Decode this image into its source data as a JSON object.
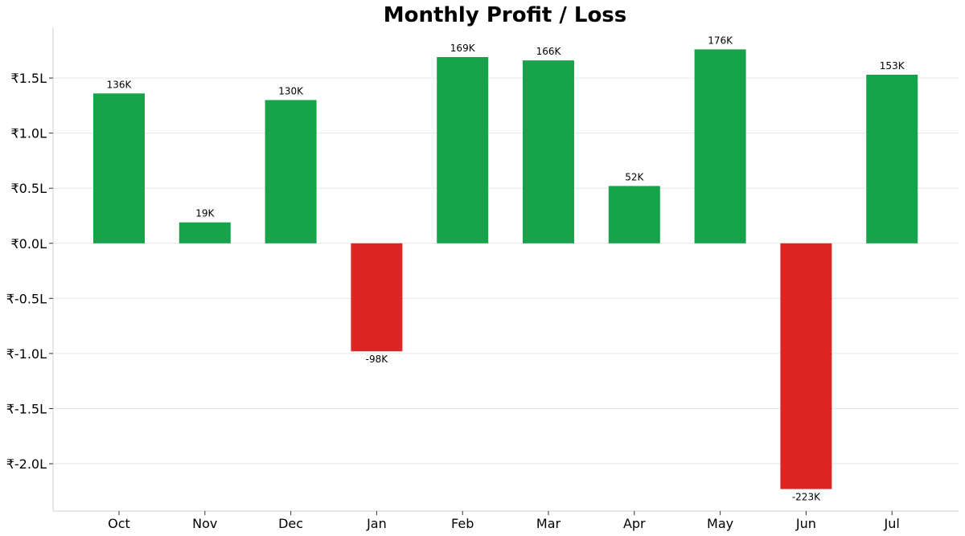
{
  "chart_data": {
    "type": "bar",
    "title": "Monthly Profit / Loss",
    "xlabel": "",
    "ylabel": "",
    "categories": [
      "Oct",
      "Nov",
      "Dec",
      "Jan",
      "Feb",
      "Mar",
      "Apr",
      "May",
      "Jun",
      "Jul"
    ],
    "values": [
      136,
      19,
      130,
      -98,
      169,
      166,
      52,
      176,
      -223,
      153
    ],
    "value_unit": "K",
    "data_labels": [
      "136K",
      "19K",
      "130K",
      "-98K",
      "169K",
      "166K",
      "52K",
      "176K",
      "-223K",
      "153K"
    ],
    "yticks": [
      {
        "value": 150,
        "label": "₹1.5L"
      },
      {
        "value": 100,
        "label": "₹1.0L"
      },
      {
        "value": 50,
        "label": "₹0.5L"
      },
      {
        "value": 0,
        "label": "₹0.0L"
      },
      {
        "value": -50,
        "label": "₹-0.5L"
      },
      {
        "value": -100,
        "label": "₹-1.0L"
      },
      {
        "value": -150,
        "label": "₹-1.5L"
      },
      {
        "value": -200,
        "label": "₹-2.0L"
      }
    ],
    "ylim": [
      -243,
      196
    ],
    "grid": true,
    "colors": {
      "positive": "#16a34a",
      "negative": "#dc2626",
      "grid": "#e6e6e6",
      "axis": "#d0d0d0"
    }
  }
}
